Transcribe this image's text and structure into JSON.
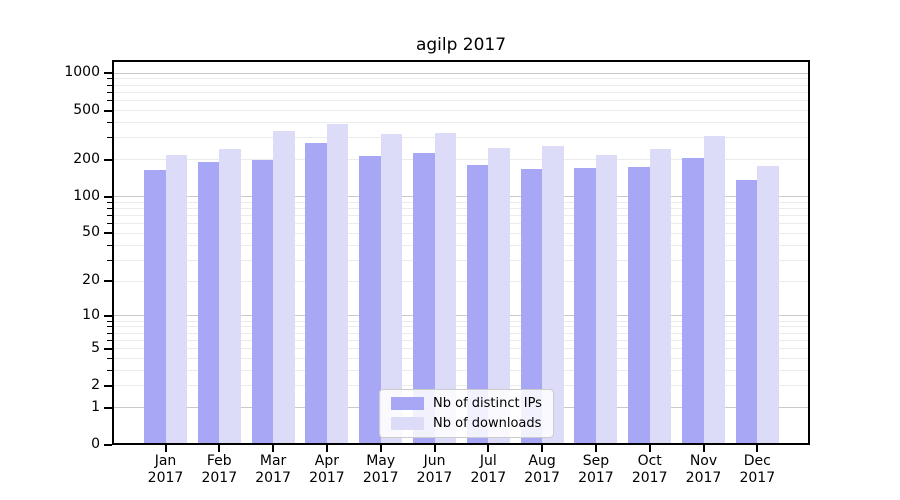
{
  "chart_data": {
    "type": "bar",
    "title": "agilp 2017",
    "categories": [
      "Jan",
      "Feb",
      "Mar",
      "Apr",
      "May",
      "Jun",
      "Jul",
      "Aug",
      "Sep",
      "Oct",
      "Nov",
      "Dec"
    ],
    "x_year_label": "2017",
    "series": [
      {
        "name": "Nb of distinct IPs",
        "color": "#a7a7f6",
        "values": [
          165,
          190,
          197,
          275,
          215,
          225,
          181,
          168,
          170,
          175,
          207,
          138
        ]
      },
      {
        "name": "Nb of downloads",
        "color": "#dcdcf9",
        "values": [
          218,
          246,
          342,
          386,
          321,
          330,
          251,
          257,
          220,
          242,
          310,
          178
        ]
      }
    ],
    "yscale": "log1p",
    "ylim": [
      0,
      1280
    ],
    "y_major_ticks": [
      0,
      1,
      2,
      5,
      10,
      20,
      50,
      100,
      200,
      500,
      1000
    ],
    "y_grid_major": [
      1,
      10,
      100,
      1000
    ],
    "y_grid_minor": [
      2,
      3,
      4,
      5,
      6,
      7,
      8,
      9,
      20,
      30,
      40,
      50,
      60,
      70,
      80,
      90,
      200,
      300,
      400,
      500,
      600,
      700,
      800,
      900
    ],
    "grid": true,
    "legend_position": "lower-center",
    "grid_major_color": "#c9c9c9",
    "grid_minor_color": "#ebebeb"
  }
}
